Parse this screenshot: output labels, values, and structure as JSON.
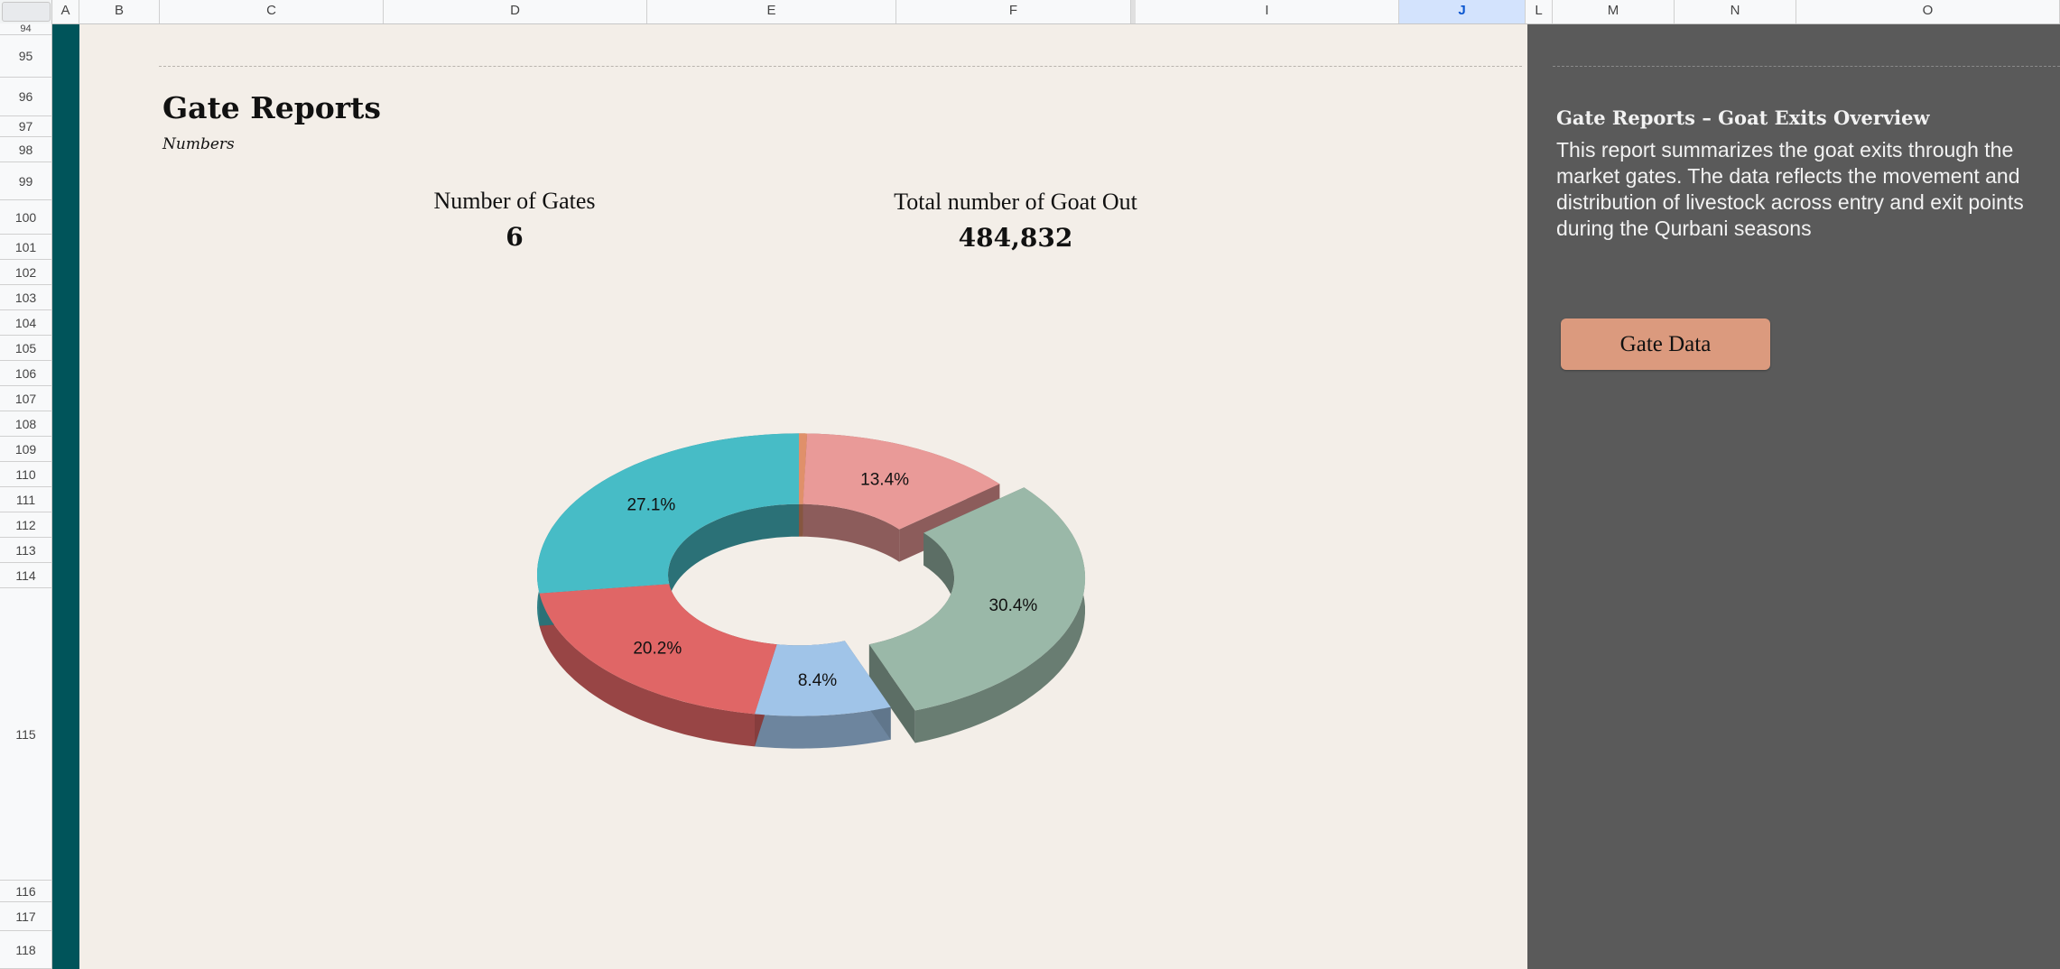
{
  "columns": [
    "A",
    "B",
    "C",
    "D",
    "E",
    "F",
    "I",
    "J",
    "L",
    "M",
    "N",
    "O"
  ],
  "selected_column": "J",
  "rows": [
    "94",
    "95",
    "96",
    "97",
    "98",
    "99",
    "100",
    "101",
    "102",
    "103",
    "104",
    "105",
    "106",
    "107",
    "108",
    "109",
    "110",
    "111",
    "112",
    "113",
    "114",
    "115",
    "116",
    "117",
    "118"
  ],
  "report": {
    "title": "Gate Reports",
    "subtitle": "Numbers"
  },
  "metrics": {
    "gates_label": "Number of Gates",
    "gates_value": "6",
    "goat_out_label": "Total number of Goat Out",
    "goat_out_value": "484,832"
  },
  "side_panel": {
    "title": "Gate Reports – Goat Exits Overview",
    "description": "This report summarizes the goat exits through the market gates. The data reflects the movement and distribution of livestock across entry and exit points during the Qurbani seasons",
    "button_label": "Gate Data"
  },
  "colors": {
    "teal_strip": "#00545a",
    "content_bg": "#f3eee8",
    "panel_bg": "#5a5a5a",
    "button_bg": "#db9a7e"
  },
  "chart_data": {
    "type": "pie",
    "style": "3d-donut",
    "slices": [
      {
        "label": "",
        "value": 0.5,
        "display": "",
        "color": "#e0906a"
      },
      {
        "label": "",
        "value": 13.4,
        "display": "13.4%",
        "color": "#e99a98"
      },
      {
        "label": "",
        "value": 30.4,
        "display": "30.4%",
        "color": "#9ab8a8",
        "exploded": true
      },
      {
        "label": "",
        "value": 8.4,
        "display": "8.4%",
        "color": "#a0c4e8"
      },
      {
        "label": "",
        "value": 20.2,
        "display": "20.2%",
        "color": "#e06666"
      },
      {
        "label": "",
        "value": 27.1,
        "display": "27.1%",
        "color": "#47bcc6"
      }
    ],
    "legend": "none"
  }
}
